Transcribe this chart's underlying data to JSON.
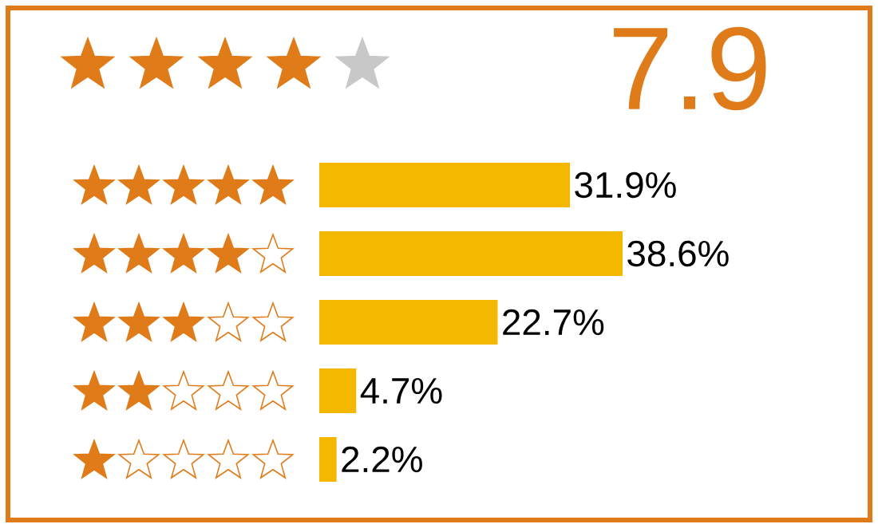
{
  "chart_data": {
    "type": "bar",
    "orientation": "horizontal",
    "title": "7.9",
    "categories": [
      null,
      null,
      null,
      null,
      null
    ],
    "values": [
      31.9,
      38.6,
      22.7,
      4.7,
      2.2
    ],
    "color": "#f5b800",
    "value_labels": [
      "31.9%",
      "38.6%",
      "22.7%",
      "4.7%",
      "2.2%"
    ]
  }
}
